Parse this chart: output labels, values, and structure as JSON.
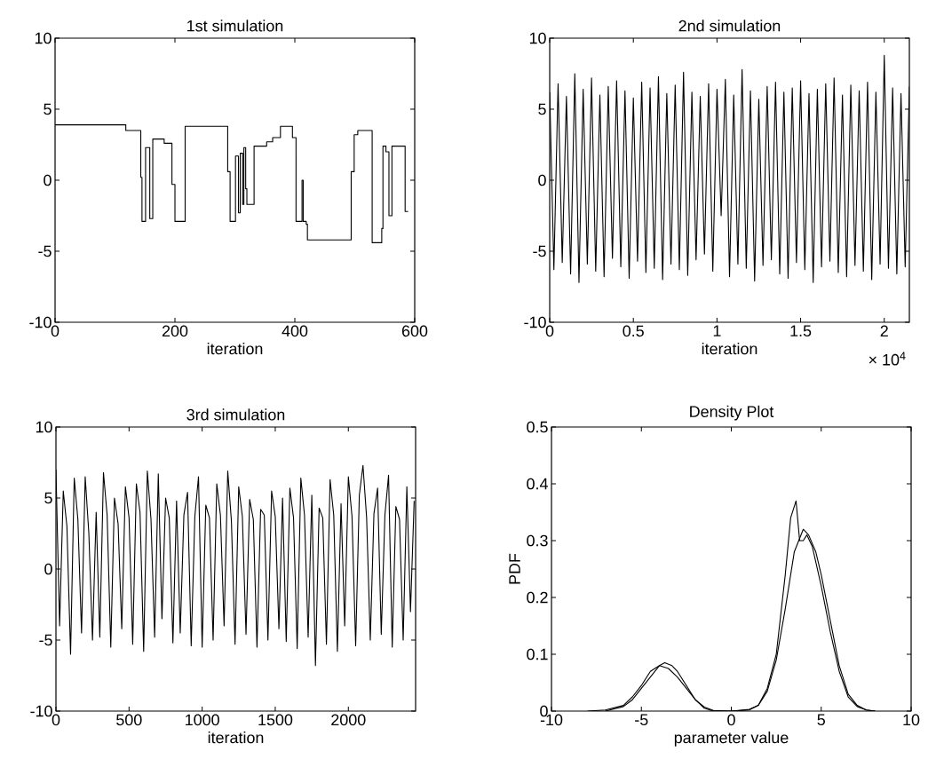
{
  "chart_data": [
    {
      "type": "step",
      "title": "1st simulation",
      "xlabel": "iteration",
      "color": "#000000",
      "x": [
        0,
        118,
        143,
        145,
        151,
        158,
        163,
        182,
        195,
        200,
        217,
        288,
        292,
        301,
        306,
        309,
        313,
        315,
        318,
        320,
        332,
        353,
        363,
        376,
        396,
        402,
        412,
        414,
        419,
        421,
        494,
        499,
        505,
        529,
        545,
        547,
        552,
        557,
        562,
        584,
        589
      ],
      "values": [
        3.9,
        3.5,
        0.2,
        -2.9,
        2.3,
        -2.7,
        2.9,
        2.6,
        -0.3,
        -2.9,
        3.8,
        0.6,
        -2.9,
        1.7,
        -2.3,
        1.9,
        -1.7,
        2.3,
        -0.6,
        -1.7,
        2.4,
        2.7,
        3.0,
        3.8,
        3.0,
        -2.9,
        0.0,
        -2.9,
        -3.1,
        -4.2,
        0.6,
        3.2,
        3.5,
        -4.4,
        -3.4,
        2.4,
        2.0,
        -2.5,
        2.4,
        -2.2,
        -2.2
      ],
      "xlim": [
        0,
        600
      ],
      "ylim": [
        -10,
        10
      ],
      "xticks": [
        0,
        200,
        400,
        600
      ],
      "yticks": [
        -10,
        -5,
        0,
        5,
        10
      ]
    },
    {
      "type": "line",
      "title": "2nd simulation",
      "xlabel": "iteration",
      "color": "#000000",
      "annotations": [
        "× 10$^{4}$"
      ],
      "x": [
        0,
        0.025,
        0.05,
        0.075,
        0.1,
        0.125,
        0.15,
        0.175,
        0.2,
        0.225,
        0.25,
        0.275,
        0.3,
        0.325,
        0.35,
        0.375,
        0.4,
        0.425,
        0.45,
        0.475,
        0.5,
        0.525,
        0.55,
        0.575,
        0.6,
        0.625,
        0.65,
        0.675,
        0.7,
        0.725,
        0.75,
        0.775,
        0.8,
        0.825,
        0.85,
        0.875,
        0.9,
        0.925,
        0.95,
        0.975,
        1,
        1.025,
        1.05,
        1.075,
        1.1,
        1.125,
        1.15,
        1.175,
        1.2,
        1.225,
        1.25,
        1.275,
        1.3,
        1.325,
        1.35,
        1.375,
        1.4,
        1.425,
        1.45,
        1.475,
        1.5,
        1.525,
        1.55,
        1.575,
        1.6,
        1.625,
        1.65,
        1.675,
        1.7,
        1.725,
        1.75,
        1.775,
        1.8,
        1.825,
        1.85,
        1.875,
        1.9,
        1.925,
        1.95,
        1.975,
        2,
        2.025,
        2.05,
        2.075,
        2.1,
        2.125,
        2.15
      ],
      "values": [
        6.2,
        -6.3,
        6.8,
        -5.8,
        5.9,
        -6.6,
        7.5,
        -7.2,
        6.4,
        -5.9,
        7.2,
        -6.4,
        6.0,
        -6.8,
        6.6,
        -5.5,
        7.0,
        -6.1,
        6.3,
        -6.9,
        5.8,
        -5.7,
        6.9,
        -6.5,
        6.5,
        -6.2,
        7.3,
        -7.0,
        6.1,
        -5.9,
        6.7,
        -6.3,
        7.6,
        -6.7,
        6.2,
        -5.6,
        5.9,
        -5.2,
        6.8,
        -6.4,
        6.4,
        -2.5,
        7.1,
        -6.8,
        6.0,
        -5.9,
        7.8,
        -6.2,
        6.3,
        -7.1,
        5.7,
        -6.0,
        6.6,
        -5.6,
        6.9,
        -6.6,
        6.2,
        -6.9,
        6.5,
        -5.8,
        7.0,
        -6.3,
        6.1,
        -7.2,
        6.4,
        -6.1,
        6.8,
        -5.7,
        7.2,
        -6.5,
        6.0,
        -6.8,
        6.7,
        -6.0,
        6.3,
        -6.4,
        6.9,
        -7.0,
        6.2,
        -5.9,
        8.8,
        -6.2,
        6.5,
        -6.6,
        6.1,
        -6.1,
        6.6
      ],
      "xlim": [
        0,
        2.15
      ],
      "ylim": [
        -10,
        10
      ],
      "xticks": [
        0,
        0.5,
        1,
        1.5,
        2
      ],
      "yticks": [
        -10,
        -5,
        0,
        5,
        10
      ]
    },
    {
      "type": "line",
      "title": "3rd simulation",
      "xlabel": "iteration",
      "color": "#000000",
      "x": [
        0,
        25,
        50,
        75,
        100,
        125,
        150,
        175,
        200,
        225,
        250,
        275,
        300,
        325,
        350,
        375,
        400,
        425,
        450,
        475,
        500,
        525,
        550,
        575,
        600,
        625,
        650,
        675,
        700,
        725,
        750,
        775,
        800,
        825,
        850,
        875,
        900,
        925,
        950,
        975,
        1000,
        1025,
        1050,
        1075,
        1100,
        1125,
        1150,
        1175,
        1200,
        1225,
        1250,
        1275,
        1300,
        1325,
        1350,
        1375,
        1400,
        1425,
        1450,
        1475,
        1500,
        1525,
        1550,
        1575,
        1600,
        1625,
        1650,
        1675,
        1700,
        1725,
        1750,
        1775,
        1800,
        1825,
        1850,
        1875,
        1900,
        1925,
        1950,
        1975,
        2000,
        2025,
        2050,
        2075,
        2100,
        2125,
        2150,
        2175,
        2200,
        2225,
        2250,
        2275,
        2300,
        2325,
        2350,
        2375,
        2400,
        2425,
        2450
      ],
      "values": [
        7.0,
        -4.0,
        5.5,
        3.0,
        -6.0,
        6.4,
        3.5,
        -4.5,
        6.5,
        2.5,
        -5.0,
        4.0,
        -4.8,
        6.8,
        3.8,
        -5.5,
        5.0,
        3.2,
        -4.2,
        5.8,
        3.6,
        -5.3,
        6.0,
        4.0,
        -5.8,
        6.9,
        3.5,
        -4.8,
        6.7,
        -3.5,
        5.0,
        3.6,
        -5.2,
        4.8,
        -4.5,
        3.8,
        5.4,
        -5.4,
        3.7,
        6.5,
        -5.5,
        4.5,
        3.6,
        -5.0,
        6.0,
        3.8,
        -4.0,
        6.9,
        3.4,
        -5.3,
        5.8,
        3.7,
        -4.6,
        4.9,
        3.5,
        -5.5,
        4.2,
        3.8,
        -5.0,
        5.5,
        3.7,
        -4.2,
        5.0,
        -5.1,
        5.7,
        3.6,
        -5.6,
        6.4,
        3.8,
        -4.8,
        5.2,
        -6.8,
        4.3,
        3.6,
        -5.3,
        6.3,
        3.8,
        -5.8,
        4.6,
        -4.0,
        6.5,
        3.7,
        -5.4,
        5.2,
        7.3,
        3.6,
        -5.0,
        3.9,
        5.7,
        -4.6,
        3.8,
        6.6,
        -5.5,
        4.4,
        3.5,
        -5.0,
        5.8,
        -3.0,
        4.8
      ],
      "xlim": [
        0,
        2460
      ],
      "ylim": [
        -10,
        10
      ],
      "xticks": [
        0,
        500,
        1000,
        1500,
        2000
      ],
      "yticks": [
        -10,
        -5,
        0,
        5,
        10
      ]
    },
    {
      "type": "line",
      "title": "Density Plot",
      "xlabel": "parameter value",
      "ylabel": "PDF",
      "series": [
        {
          "color": "#000000",
          "x": [
            -8,
            -7,
            -6,
            -5.5,
            -5,
            -4.5,
            -4,
            -3.5,
            -3,
            -2.5,
            -2,
            -1.5,
            -1,
            0,
            1,
            1.5,
            2,
            2.5,
            3,
            3.3,
            3.6,
            3.8,
            4,
            4.2,
            4.5,
            5,
            5.5,
            6,
            6.5,
            7,
            7.5,
            8
          ],
          "values": [
            0,
            0.002,
            0.01,
            0.025,
            0.045,
            0.07,
            0.08,
            0.075,
            0.06,
            0.04,
            0.02,
            0.005,
            0,
            0,
            0.003,
            0.01,
            0.04,
            0.1,
            0.24,
            0.34,
            0.37,
            0.3,
            0.3,
            0.31,
            0.29,
            0.22,
            0.14,
            0.07,
            0.025,
            0.008,
            0.002,
            0
          ]
        },
        {
          "color": "#000000",
          "x": [
            -7,
            -6,
            -5.5,
            -5,
            -4.5,
            -4,
            -3.7,
            -3.3,
            -3,
            -2.5,
            -2,
            -1.5,
            -1,
            0,
            1,
            1.5,
            2,
            2.5,
            3,
            3.5,
            4,
            4.3,
            4.7,
            5,
            5.5,
            6,
            6.5,
            7,
            7.5,
            8
          ],
          "values": [
            0,
            0.008,
            0.02,
            0.04,
            0.06,
            0.08,
            0.085,
            0.08,
            0.07,
            0.045,
            0.02,
            0.007,
            0.001,
            0,
            0.002,
            0.01,
            0.035,
            0.09,
            0.18,
            0.28,
            0.32,
            0.31,
            0.28,
            0.24,
            0.16,
            0.08,
            0.03,
            0.01,
            0.002,
            0
          ]
        }
      ],
      "xlim": [
        -10,
        10
      ],
      "ylim": [
        0,
        0.5
      ],
      "xticks": [
        -10,
        -5,
        0,
        5,
        10
      ],
      "yticks": [
        0,
        0.1,
        0.2,
        0.3,
        0.4,
        0.5
      ]
    }
  ]
}
